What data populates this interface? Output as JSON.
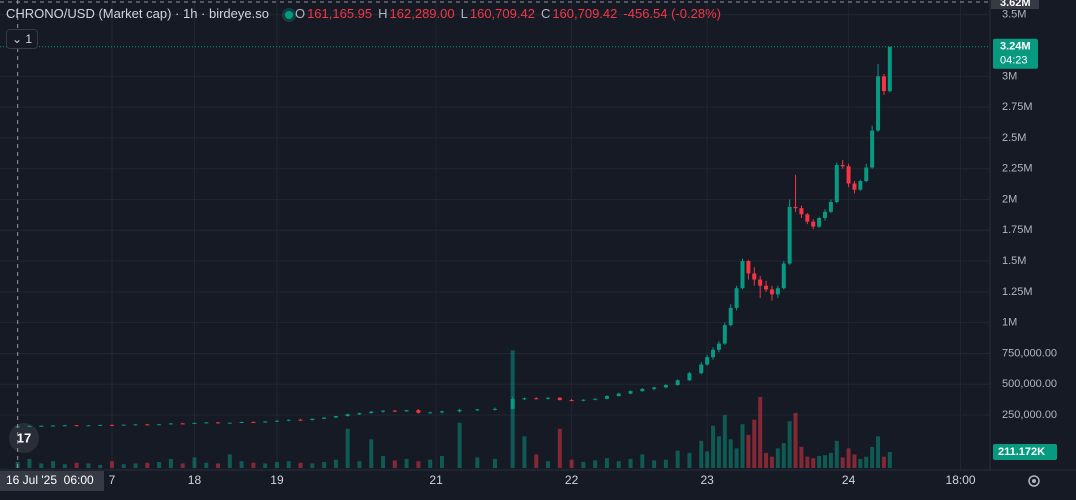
{
  "header": {
    "symbol": "CHRONO/USD (Market cap) · 1h · birdeye.so",
    "o_label": "O",
    "o": "161,165.95",
    "h_label": "H",
    "h": "162,289.00",
    "l_label": "L",
    "l": "160,709.42",
    "c_label": "C",
    "c": "160,709.42",
    "change": "-456.54 (-0.28%)",
    "collapse": "1"
  },
  "chart_data": {
    "type": "candlestick",
    "x": [
      0,
      2,
      4,
      6,
      8,
      10,
      12,
      14,
      16,
      18,
      20,
      22,
      24,
      26,
      28,
      30,
      32,
      34,
      36,
      38,
      40,
      42,
      44,
      46,
      48,
      50,
      52,
      54,
      56,
      58,
      60,
      62,
      64,
      66,
      68,
      70,
      72,
      75,
      78,
      81,
      84,
      86,
      88,
      90,
      92,
      94,
      96,
      98,
      100,
      102,
      104,
      106,
      108,
      110,
      112,
      114,
      116,
      117,
      118,
      119,
      120,
      121,
      122,
      123,
      124,
      125,
      126,
      127,
      128,
      129,
      130,
      131,
      132,
      133,
      134,
      135,
      136,
      137,
      138,
      139,
      140,
      141,
      142,
      143,
      144,
      145,
      146,
      147,
      148
    ],
    "open": [
      155000,
      158000,
      162000,
      163000,
      165000,
      167000,
      164000,
      166000,
      170000,
      168000,
      172000,
      174000,
      171000,
      175000,
      182000,
      180000,
      186000,
      190000,
      185000,
      188000,
      194000,
      192000,
      198000,
      204000,
      212000,
      209000,
      220000,
      230000,
      242000,
      256000,
      266000,
      278000,
      286000,
      280000,
      290000,
      268000,
      272000,
      280000,
      292000,
      296000,
      300000,
      380000,
      386000,
      382000,
      390000,
      372000,
      370000,
      374000,
      382000,
      404000,
      424000,
      444000,
      462000,
      474000,
      494000,
      532000,
      590000,
      660000,
      720000,
      780000,
      830000,
      980000,
      1120000,
      1280000,
      1500000,
      1400000,
      1350000,
      1300000,
      1270000,
      1230000,
      1280000,
      1480000,
      1940000,
      1930000,
      1880000,
      1820000,
      1780000,
      1850000,
      1900000,
      1980000,
      2280000,
      2270000,
      2130000,
      2080000,
      2150000,
      2260000,
      2560000,
      3000000,
      2880000
    ],
    "high": [
      160000,
      165000,
      166000,
      168000,
      170000,
      169000,
      168000,
      172000,
      173000,
      174000,
      176000,
      178000,
      176000,
      184000,
      186000,
      188000,
      192000,
      194000,
      190000,
      196000,
      198000,
      200000,
      206000,
      214000,
      220000,
      222000,
      232000,
      244000,
      262000,
      270000,
      282000,
      290000,
      292000,
      292000,
      298000,
      278000,
      286000,
      300000,
      300000,
      310000,
      398000,
      392000,
      394000,
      396000,
      396000,
      380000,
      378000,
      386000,
      410000,
      430000,
      450000,
      470000,
      480000,
      500000,
      540000,
      600000,
      680000,
      740000,
      800000,
      850000,
      1000000,
      1150000,
      1300000,
      1520000,
      1510000,
      1450000,
      1380000,
      1340000,
      1300000,
      1300000,
      1500000,
      2000000,
      2200000,
      1950000,
      1890000,
      1840000,
      1860000,
      1920000,
      2000000,
      2300000,
      2320000,
      2290000,
      2150000,
      2160000,
      2290000,
      2600000,
      3100000,
      3020000,
      3240000
    ],
    "low": [
      150000,
      155000,
      160000,
      161000,
      163000,
      162000,
      163000,
      164000,
      166000,
      167000,
      170000,
      170000,
      169000,
      173000,
      178000,
      178000,
      183000,
      184000,
      182000,
      186000,
      190000,
      188000,
      195000,
      200000,
      208000,
      206000,
      218000,
      226000,
      238000,
      250000,
      262000,
      270000,
      276000,
      278000,
      262000,
      262000,
      262000,
      270000,
      284000,
      288000,
      296000,
      372000,
      378000,
      376000,
      368000,
      362000,
      362000,
      370000,
      378000,
      400000,
      418000,
      440000,
      450000,
      468000,
      488000,
      526000,
      580000,
      650000,
      700000,
      760000,
      820000,
      970000,
      1100000,
      1270000,
      1350000,
      1300000,
      1200000,
      1250000,
      1180000,
      1200000,
      1270000,
      1470000,
      1900000,
      1850000,
      1800000,
      1760000,
      1770000,
      1830000,
      1890000,
      1970000,
      2250000,
      2100000,
      2050000,
      2070000,
      2140000,
      2250000,
      2550000,
      2850000,
      2870000
    ],
    "close": [
      158000,
      162000,
      163000,
      165000,
      167000,
      164000,
      166000,
      170000,
      168000,
      172000,
      174000,
      171000,
      175000,
      182000,
      180000,
      186000,
      190000,
      185000,
      188000,
      194000,
      192000,
      198000,
      204000,
      212000,
      209000,
      220000,
      230000,
      242000,
      256000,
      266000,
      278000,
      286000,
      280000,
      290000,
      268000,
      272000,
      280000,
      292000,
      296000,
      300000,
      380000,
      386000,
      382000,
      390000,
      372000,
      370000,
      374000,
      382000,
      404000,
      424000,
      444000,
      462000,
      474000,
      494000,
      532000,
      590000,
      660000,
      720000,
      780000,
      830000,
      980000,
      1120000,
      1280000,
      1500000,
      1400000,
      1350000,
      1300000,
      1270000,
      1230000,
      1280000,
      1480000,
      1940000,
      1930000,
      1880000,
      1820000,
      1780000,
      1850000,
      1900000,
      1980000,
      2280000,
      2270000,
      2130000,
      2080000,
      2150000,
      2260000,
      2560000,
      3000000,
      2880000,
      3240000
    ],
    "volume": [
      80000,
      120000,
      60000,
      90000,
      50000,
      70000,
      60000,
      40000,
      90000,
      50000,
      60000,
      70000,
      80000,
      120000,
      60000,
      140000,
      70000,
      60000,
      180000,
      90000,
      70000,
      60000,
      80000,
      90000,
      70000,
      60000,
      80000,
      110000,
      520000,
      90000,
      380000,
      160000,
      100000,
      120000,
      90000,
      110000,
      160000,
      600000,
      140000,
      120000,
      1560000,
      420000,
      180000,
      90000,
      520000,
      110000,
      80000,
      100000,
      130000,
      90000,
      120000,
      180000,
      100000,
      110000,
      230000,
      200000,
      360000,
      220000,
      560000,
      420000,
      700000,
      380000,
      260000,
      580000,
      440000,
      640000,
      940000,
      200000,
      150000,
      260000,
      330000,
      620000,
      730000,
      280000,
      150000,
      130000,
      160000,
      170000,
      200000,
      360000,
      140000,
      260000,
      180000,
      120000,
      150000,
      280000,
      420000,
      150000,
      211172
    ],
    "up_color": "#089981",
    "down_color": "#f23645",
    "xlim": [
      -3,
      165
    ],
    "xticks": [
      {
        "value": 16,
        "label": "7"
      },
      {
        "value": 30,
        "label": "18"
      },
      {
        "value": 44,
        "label": "19"
      },
      {
        "value": 71,
        "label": "21"
      },
      {
        "value": 94,
        "label": "22"
      },
      {
        "value": 117,
        "label": "23"
      },
      {
        "value": 141,
        "label": "24"
      },
      {
        "value": 160,
        "label": "18:00"
      }
    ],
    "ylim": [
      -180000,
      3620000
    ],
    "yticks": [
      {
        "value": 250000,
        "label": "250,000.00"
      },
      {
        "value": 500000,
        "label": "500,000.00"
      },
      {
        "value": 750000,
        "label": "750,000.00"
      },
      {
        "value": 1000000,
        "label": "1M"
      },
      {
        "value": 1250000,
        "label": "1.25M"
      },
      {
        "value": 1500000,
        "label": "1.5M"
      },
      {
        "value": 1750000,
        "label": "1.75M"
      },
      {
        "value": 2000000,
        "label": "2M"
      },
      {
        "value": 2250000,
        "label": "2.25M"
      },
      {
        "value": 2500000,
        "label": "2.5M"
      },
      {
        "value": 2750000,
        "label": "2.75M"
      },
      {
        "value": 3000000,
        "label": "3M"
      },
      {
        "value": 3500000,
        "label": "3.5M"
      }
    ],
    "vlim": [
      0,
      6200000
    ],
    "grid": true,
    "last_label": "3.24M",
    "countdown": "04:23",
    "volume_last_label": "211.172K",
    "crosshair": {
      "x": 0,
      "x_label": "16 Jul '25  06:00",
      "y": 3620000,
      "y_label": "3.62M"
    }
  }
}
